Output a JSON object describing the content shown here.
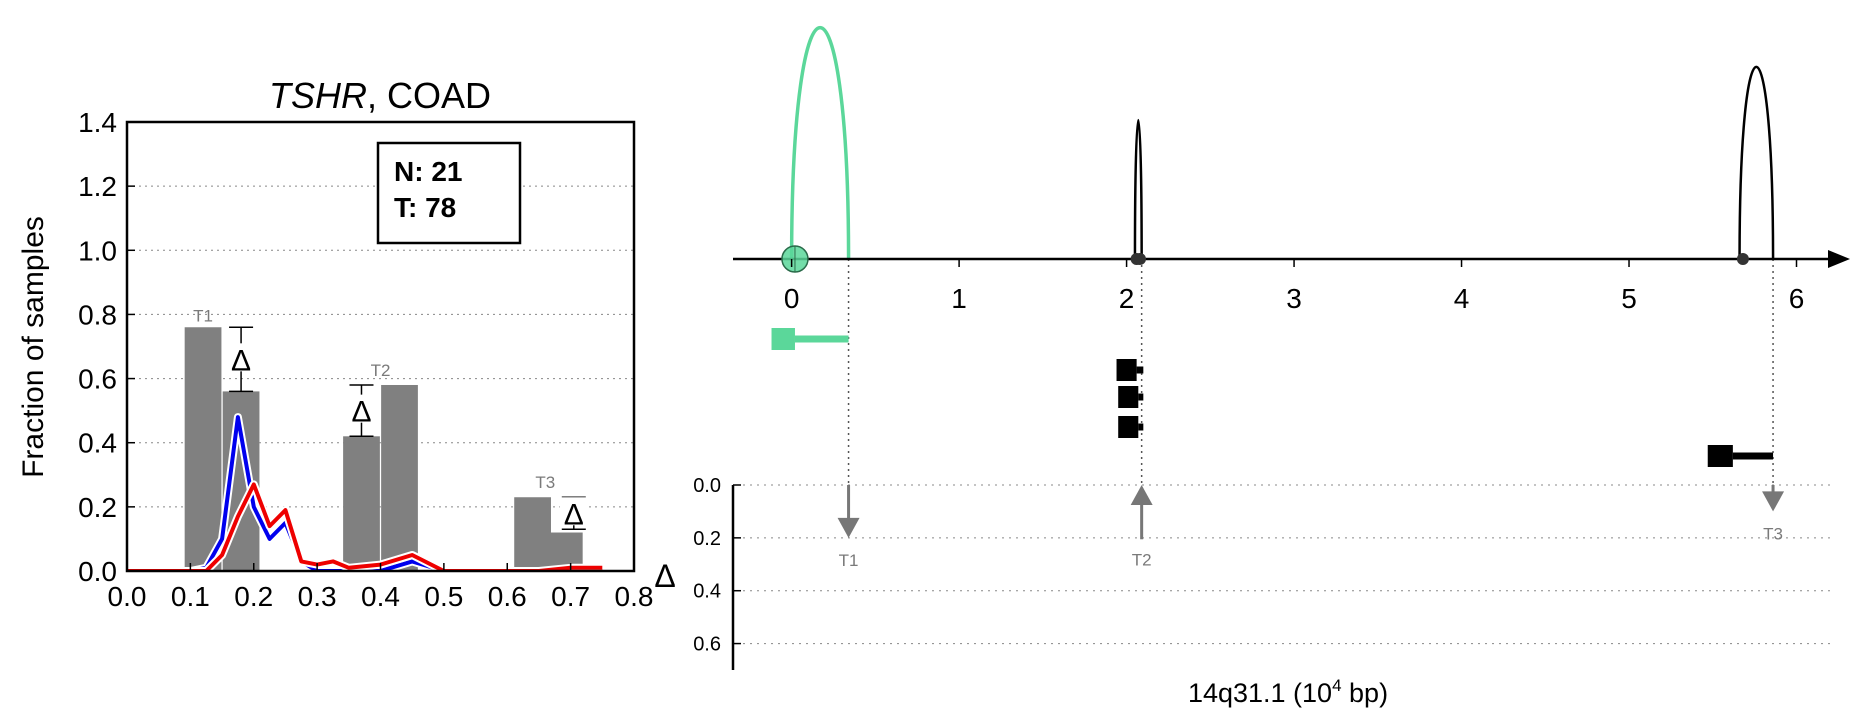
{
  "colors": {
    "bar": "#808080",
    "normal_line": "#0000ee",
    "tumor_line": "#ee0000",
    "highlight": "#5bd79a",
    "axis": "#000000",
    "gray_text": "#7a7a7a"
  },
  "chart_data": [
    {
      "type": "bar",
      "title_italic": "TSHR",
      "title_rest": ", COAD",
      "ylabel": "Fraction of samples",
      "xlim": [
        0.0,
        0.8
      ],
      "ylim": [
        0.0,
        1.4
      ],
      "grid": "horizontal dotted",
      "xticks": [
        "0.0",
        "0.1",
        "0.2",
        "0.3",
        "0.4",
        "0.5",
        "0.6",
        "0.7",
        "0.8"
      ],
      "yticks": [
        "0.0",
        "0.2",
        "0.4",
        "0.6",
        "0.8",
        "1.0",
        "1.2",
        "1.4"
      ],
      "counts": {
        "n_label": "N: 21",
        "t_label": "T: 78"
      },
      "bars": [
        {
          "x": 0.12,
          "value": 0.76
        },
        {
          "x": 0.18,
          "value": 0.56
        },
        {
          "x": 0.37,
          "value": 0.42
        },
        {
          "x": 0.43,
          "value": 0.58
        },
        {
          "x": 0.64,
          "value": 0.23
        },
        {
          "x": 0.69,
          "value": 0.12
        }
      ],
      "bar_width": 0.058,
      "bar_labels": [
        {
          "text": "T1",
          "x": 0.12,
          "y": 0.76
        },
        {
          "text": "T2",
          "x": 0.4,
          "y": 0.59
        },
        {
          "text": "T3",
          "x": 0.66,
          "y": 0.24
        }
      ],
      "deltas": [
        {
          "symbol": "Δ",
          "x": 0.18,
          "low": 0.56,
          "high": 0.76
        },
        {
          "symbol": "Δ",
          "x": 0.37,
          "low": 0.42,
          "high": 0.58
        },
        {
          "symbol": "Δ",
          "x": 0.705,
          "low": 0.13,
          "high": 0.23
        }
      ],
      "series": [
        {
          "color": "#0000ee",
          "x": [
            0.0,
            0.05,
            0.1,
            0.125,
            0.15,
            0.175,
            0.2,
            0.225,
            0.25,
            0.275,
            0.3,
            0.325,
            0.35,
            0.4,
            0.45,
            0.5,
            0.55,
            0.6,
            0.65,
            0.7,
            0.75
          ],
          "y": [
            0.0,
            0.0,
            0.0,
            0.01,
            0.1,
            0.48,
            0.2,
            0.1,
            0.15,
            0.03,
            0.0,
            0.0,
            0.0,
            0.0,
            0.03,
            0.0,
            0.0,
            0.0,
            0.0,
            0.0,
            0.0
          ]
        },
        {
          "color": "#ee0000",
          "x": [
            0.0,
            0.05,
            0.1,
            0.125,
            0.15,
            0.175,
            0.2,
            0.225,
            0.25,
            0.275,
            0.3,
            0.325,
            0.35,
            0.4,
            0.45,
            0.5,
            0.55,
            0.6,
            0.65,
            0.7,
            0.75
          ],
          "y": [
            0.0,
            0.0,
            0.0,
            0.0,
            0.05,
            0.17,
            0.27,
            0.14,
            0.19,
            0.03,
            0.02,
            0.03,
            0.01,
            0.02,
            0.05,
            0.0,
            0.0,
            0.0,
            0.0,
            0.01,
            0.01
          ]
        }
      ]
    },
    {
      "type": "line",
      "xlabel_main": "14q31.1 (10",
      "xlabel_sup": "4",
      "xlabel_end": " bp)",
      "xlim": [
        -0.35,
        6.2
      ],
      "xticks": [
        "0",
        "1",
        "2",
        "3",
        "4",
        "5",
        "6"
      ],
      "delta_axis_label": "Δ",
      "delta_ylim": [
        0.0,
        0.7
      ],
      "delta_yticks": [
        "0.0",
        "0.2",
        "0.4",
        "0.6"
      ],
      "grid": "horizontal dotted",
      "arcs": [
        {
          "start": 0.0,
          "end": 0.34,
          "height": 1.0,
          "color": "#5bd79a"
        },
        {
          "start": 2.05,
          "end": 2.09,
          "height": 0.6,
          "color": "#000000"
        },
        {
          "start": 5.66,
          "end": 5.86,
          "height": 0.83,
          "color": "#000000"
        }
      ],
      "points": [
        {
          "x": 0.02,
          "big": true,
          "color": "#5bd79a"
        },
        {
          "x": 2.06,
          "big": false,
          "color": "#333333"
        },
        {
          "x": 2.08,
          "big": false,
          "color": "#333333"
        },
        {
          "x": 5.68,
          "big": false,
          "color": "#333333"
        }
      ],
      "transcripts": [
        {
          "box_start": -0.12,
          "box_end": 0.02,
          "line_end": 0.34,
          "row": 0,
          "color": "#5bd79a"
        },
        {
          "box_start": 1.94,
          "box_end": 2.06,
          "line_end": 2.1,
          "row": 1,
          "color": "#000000"
        },
        {
          "box_start": 1.95,
          "box_end": 2.07,
          "line_end": 2.1,
          "row": 2,
          "color": "#000000"
        },
        {
          "box_start": 1.95,
          "box_end": 2.07,
          "line_end": 2.1,
          "row": 3,
          "color": "#000000"
        },
        {
          "box_start": 5.47,
          "box_end": 5.62,
          "line_end": 5.86,
          "row": 4,
          "color": "#000000"
        }
      ],
      "sites": [
        {
          "label": "T1",
          "x": 0.34,
          "delta": 0.2,
          "direction": "down"
        },
        {
          "label": "T2",
          "x": 2.09,
          "delta": 0.16,
          "direction": "up"
        },
        {
          "label": "T3",
          "x": 5.86,
          "delta": 0.1,
          "direction": "down"
        }
      ]
    }
  ]
}
